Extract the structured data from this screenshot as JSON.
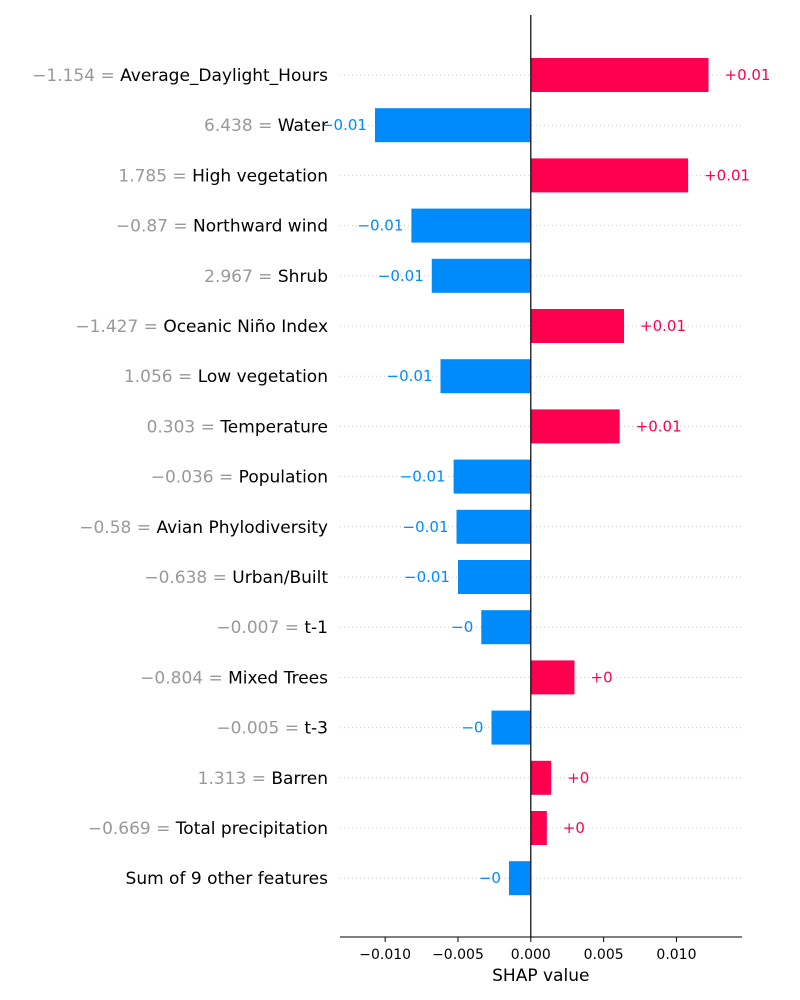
{
  "chart_data": {
    "type": "bar",
    "orientation": "horizontal",
    "xlabel": "SHAP value",
    "xlim": [
      -0.0131,
      0.0145
    ],
    "xticks": [
      {
        "value": -0.01,
        "label": "−0.010"
      },
      {
        "value": -0.005,
        "label": "−0.005"
      },
      {
        "value": 0.0,
        "label": "0.000"
      },
      {
        "value": 0.005,
        "label": "0.005"
      },
      {
        "value": 0.01,
        "label": "0.010"
      }
    ],
    "grid": "dotted horizontal row lines",
    "colors": {
      "positive": "#ff0051",
      "negative": "#008bfb",
      "feature_value": "#999999",
      "gridline": "#cccccc"
    },
    "rows": [
      {
        "value_text": "−1.154 = ",
        "feature": "Average_Daylight_Hours",
        "shap": 0.0122,
        "label": "+0.01"
      },
      {
        "value_text": "6.438 = ",
        "feature": "Water",
        "shap": -0.0107,
        "label": "−0.01"
      },
      {
        "value_text": "1.785 = ",
        "feature": "High vegetation",
        "shap": 0.0108,
        "label": "+0.01"
      },
      {
        "value_text": "−0.87 = ",
        "feature": "Northward wind",
        "shap": -0.0082,
        "label": "−0.01"
      },
      {
        "value_text": "2.967 = ",
        "feature": "Shrub",
        "shap": -0.0068,
        "label": "−0.01"
      },
      {
        "value_text": "−1.427 = ",
        "feature": "Oceanic Niño Index",
        "shap": 0.0064,
        "label": "+0.01"
      },
      {
        "value_text": "1.056 = ",
        "feature": "Low vegetation",
        "shap": -0.0062,
        "label": "−0.01"
      },
      {
        "value_text": "0.303 = ",
        "feature": "Temperature",
        "shap": 0.0061,
        "label": "+0.01"
      },
      {
        "value_text": "−0.036 = ",
        "feature": "Population",
        "shap": -0.0053,
        "label": "−0.01"
      },
      {
        "value_text": "−0.58 = ",
        "feature": "Avian Phylodiversity",
        "shap": -0.0051,
        "label": "−0.01"
      },
      {
        "value_text": "−0.638 = ",
        "feature": "Urban/Built",
        "shap": -0.005,
        "label": "−0.01"
      },
      {
        "value_text": "−0.007 = ",
        "feature": "t-1",
        "shap": -0.0034,
        "label": "−0"
      },
      {
        "value_text": "−0.804 = ",
        "feature": "Mixed Trees",
        "shap": 0.003,
        "label": "+0"
      },
      {
        "value_text": "−0.005 = ",
        "feature": "t-3",
        "shap": -0.0027,
        "label": "−0"
      },
      {
        "value_text": "1.313 = ",
        "feature": "Barren",
        "shap": 0.0014,
        "label": "+0"
      },
      {
        "value_text": "−0.669 = ",
        "feature": "Total precipitation",
        "shap": 0.0011,
        "label": "+0"
      },
      {
        "value_text": "",
        "feature": "Sum of 9 other features",
        "shap": -0.0015,
        "label": "−0"
      }
    ]
  }
}
